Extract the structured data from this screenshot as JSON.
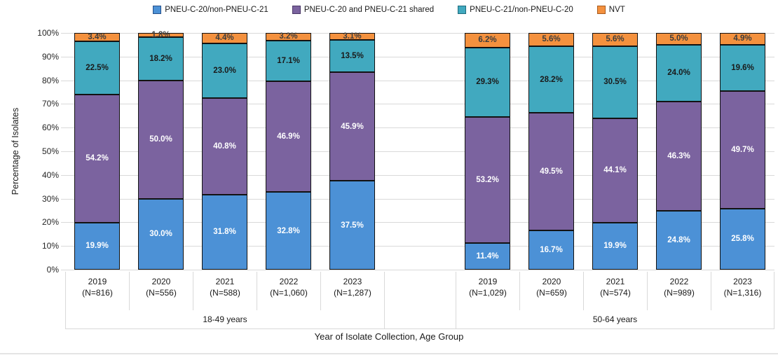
{
  "chart_data": {
    "type": "bar",
    "stacked": true,
    "percent_stacked": true,
    "xlabel": "Year of Isolate Collection, Age Group",
    "ylabel": "Percentage of Isolates",
    "ylim": [
      0,
      100
    ],
    "y_ticks": [
      "100%",
      "90%",
      "80%",
      "70%",
      "60%",
      "50%",
      "40%",
      "30%",
      "20%",
      "10%",
      "0%"
    ],
    "grid": true,
    "legend_position": "top",
    "series": [
      {
        "name": "PNEU-C-20/non-PNEU-C-21",
        "color": "#4C91D6",
        "swatch_border": "#27518a",
        "label_color": "#ffffff",
        "key": "pneu-c-20-only"
      },
      {
        "name": "PNEU-C-20 and PNEU-C-21 shared",
        "color": "#7B639F",
        "swatch_border": "#4a3766",
        "label_color": "#ffffff",
        "key": "shared"
      },
      {
        "name": "PNEU-C-21/non-PNEU-C-20",
        "color": "#41A9BF",
        "swatch_border": "#1e6c7d",
        "label_color": "#1a1a1a",
        "key": "pneu-c-21-only"
      },
      {
        "name": "NVT",
        "color": "#F4913E",
        "swatch_border": "#a85b1e",
        "label_color": "#3d3d3d",
        "key": "nvt"
      }
    ],
    "groups": [
      {
        "label": "18-49 years",
        "bars": [
          {
            "year": "2019",
            "n": "(N=816)",
            "values": [
              19.9,
              54.2,
              22.5,
              3.4
            ]
          },
          {
            "year": "2020",
            "n": "(N=556)",
            "values": [
              30.0,
              50.0,
              18.2,
              1.8
            ]
          },
          {
            "year": "2021",
            "n": "(N=588)",
            "values": [
              31.8,
              40.8,
              23.0,
              4.4
            ]
          },
          {
            "year": "2022",
            "n": "(N=1,060)",
            "values": [
              32.8,
              46.9,
              17.1,
              3.2
            ]
          },
          {
            "year": "2023",
            "n": "(N=1,287)",
            "values": [
              37.5,
              45.9,
              13.5,
              3.1
            ]
          }
        ]
      },
      {
        "label": "50-64 years",
        "bars": [
          {
            "year": "2019",
            "n": "(N=1,029)",
            "values": [
              11.4,
              53.2,
              29.3,
              6.2
            ]
          },
          {
            "year": "2020",
            "n": "(N=659)",
            "values": [
              16.7,
              49.5,
              28.2,
              5.6
            ]
          },
          {
            "year": "2021",
            "n": "(N=574)",
            "values": [
              19.9,
              44.1,
              30.5,
              5.6
            ]
          },
          {
            "year": "2022",
            "n": "(N=989)",
            "values": [
              24.8,
              46.3,
              24.0,
              5.0
            ]
          },
          {
            "year": "2023",
            "n": "(N=1,316)",
            "values": [
              25.8,
              49.7,
              19.6,
              4.9
            ]
          }
        ]
      }
    ]
  }
}
